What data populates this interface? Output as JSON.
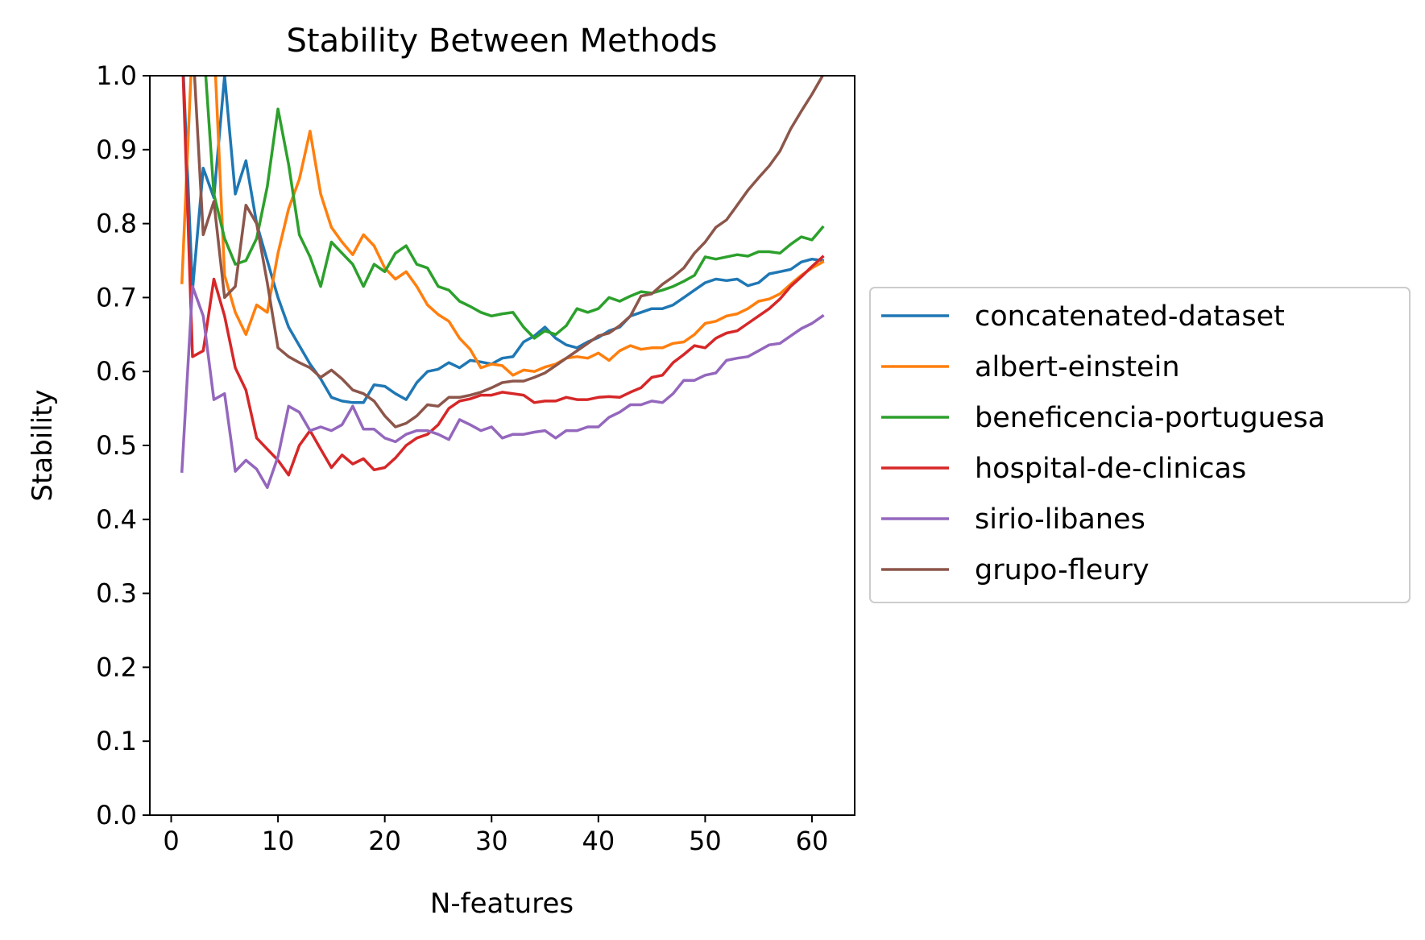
{
  "chart_data": {
    "type": "line",
    "title": "Stability Between Methods",
    "xlabel": "N-features",
    "ylabel": "Stability",
    "xlim": [
      -2,
      64
    ],
    "ylim": [
      0.0,
      1.0
    ],
    "xticks": [
      0,
      10,
      20,
      30,
      40,
      50,
      60
    ],
    "yticks": [
      0.0,
      0.1,
      0.2,
      0.3,
      0.4,
      0.5,
      0.6,
      0.7,
      0.8,
      0.9,
      1.0
    ],
    "xtick_labels": [
      "0",
      "10",
      "20",
      "30",
      "40",
      "50",
      "60"
    ],
    "ytick_labels": [
      "0.0",
      "0.1",
      "0.2",
      "0.3",
      "0.4",
      "0.5",
      "0.6",
      "0.7",
      "0.8",
      "0.9",
      "1.0"
    ],
    "grid": false,
    "legend_position": "center-right outside",
    "x": [
      1,
      2,
      3,
      4,
      5,
      6,
      7,
      8,
      9,
      10,
      11,
      12,
      13,
      14,
      15,
      16,
      17,
      18,
      19,
      20,
      21,
      22,
      23,
      24,
      25,
      26,
      27,
      28,
      29,
      30,
      31,
      32,
      33,
      34,
      35,
      36,
      37,
      38,
      39,
      40,
      41,
      42,
      43,
      44,
      45,
      46,
      47,
      48,
      49,
      50,
      51,
      52,
      53,
      54,
      55,
      56,
      57,
      58,
      59,
      60,
      61
    ],
    "series": [
      {
        "name": "concatenated-dataset",
        "color": "#1f77b4",
        "values": [
          1.05,
          0.71,
          0.875,
          0.835,
          1.0,
          0.84,
          0.885,
          0.8,
          0.75,
          0.7,
          0.66,
          0.635,
          0.61,
          0.59,
          0.565,
          0.56,
          0.558,
          0.558,
          0.582,
          0.58,
          0.57,
          0.562,
          0.585,
          0.6,
          0.603,
          0.612,
          0.605,
          0.615,
          0.613,
          0.61,
          0.618,
          0.62,
          0.64,
          0.648,
          0.66,
          0.645,
          0.636,
          0.632,
          0.64,
          0.646,
          0.655,
          0.66,
          0.675,
          0.68,
          0.685,
          0.685,
          0.69,
          0.7,
          0.71,
          0.72,
          0.725,
          0.723,
          0.725,
          0.716,
          0.72,
          0.732,
          0.735,
          0.738,
          0.748,
          0.752,
          0.75
        ]
      },
      {
        "name": "albert-einstein",
        "color": "#ff7f0e",
        "values": [
          0.72,
          1.05,
          1.05,
          1.05,
          0.73,
          0.68,
          0.65,
          0.69,
          0.68,
          0.76,
          0.82,
          0.86,
          0.925,
          0.84,
          0.795,
          0.775,
          0.758,
          0.785,
          0.77,
          0.74,
          0.725,
          0.735,
          0.715,
          0.69,
          0.677,
          0.668,
          0.645,
          0.63,
          0.605,
          0.61,
          0.608,
          0.595,
          0.602,
          0.6,
          0.606,
          0.61,
          0.618,
          0.62,
          0.618,
          0.625,
          0.615,
          0.628,
          0.635,
          0.63,
          0.632,
          0.632,
          0.638,
          0.64,
          0.65,
          0.665,
          0.668,
          0.675,
          0.678,
          0.685,
          0.695,
          0.698,
          0.705,
          0.718,
          0.73,
          0.74,
          0.748
        ]
      },
      {
        "name": "beneficencia-portuguesa",
        "color": "#2ca02c",
        "values": [
          1.05,
          1.05,
          1.05,
          0.84,
          0.78,
          0.745,
          0.75,
          0.78,
          0.85,
          0.955,
          0.88,
          0.785,
          0.755,
          0.715,
          0.775,
          0.76,
          0.745,
          0.715,
          0.745,
          0.735,
          0.76,
          0.77,
          0.745,
          0.74,
          0.715,
          0.71,
          0.695,
          0.688,
          0.68,
          0.675,
          0.678,
          0.68,
          0.66,
          0.645,
          0.655,
          0.65,
          0.662,
          0.685,
          0.68,
          0.685,
          0.7,
          0.695,
          0.702,
          0.708,
          0.706,
          0.71,
          0.715,
          0.722,
          0.73,
          0.755,
          0.752,
          0.755,
          0.758,
          0.756,
          0.762,
          0.762,
          0.76,
          0.772,
          0.782,
          0.778,
          0.795
        ]
      },
      {
        "name": "hospital-de-clinicas",
        "color": "#d62728",
        "values": [
          1.05,
          0.62,
          0.628,
          0.725,
          0.675,
          0.605,
          0.575,
          0.51,
          0.495,
          0.48,
          0.46,
          0.5,
          0.52,
          0.495,
          0.47,
          0.487,
          0.475,
          0.482,
          0.467,
          0.47,
          0.483,
          0.5,
          0.51,
          0.515,
          0.528,
          0.55,
          0.56,
          0.563,
          0.568,
          0.568,
          0.572,
          0.57,
          0.568,
          0.558,
          0.56,
          0.56,
          0.565,
          0.562,
          0.562,
          0.565,
          0.566,
          0.565,
          0.572,
          0.578,
          0.592,
          0.595,
          0.612,
          0.623,
          0.635,
          0.632,
          0.645,
          0.652,
          0.655,
          0.665,
          0.675,
          0.685,
          0.698,
          0.715,
          0.728,
          0.742,
          0.755
        ]
      },
      {
        "name": "sirio-libanes",
        "color": "#9467bd",
        "values": [
          0.465,
          0.715,
          0.675,
          0.562,
          0.57,
          0.465,
          0.48,
          0.468,
          0.443,
          0.485,
          0.553,
          0.545,
          0.52,
          0.525,
          0.52,
          0.528,
          0.553,
          0.522,
          0.522,
          0.51,
          0.505,
          0.515,
          0.52,
          0.52,
          0.515,
          0.508,
          0.535,
          0.528,
          0.52,
          0.525,
          0.51,
          0.515,
          0.515,
          0.518,
          0.52,
          0.51,
          0.52,
          0.52,
          0.525,
          0.525,
          0.538,
          0.545,
          0.555,
          0.555,
          0.56,
          0.558,
          0.57,
          0.588,
          0.588,
          0.595,
          0.598,
          0.615,
          0.618,
          0.62,
          0.628,
          0.636,
          0.638,
          0.648,
          0.658,
          0.665,
          0.675
        ]
      },
      {
        "name": "grupo-fleury",
        "color": "#8c564b",
        "values": [
          1.05,
          1.05,
          0.785,
          0.83,
          0.7,
          0.715,
          0.825,
          0.8,
          0.72,
          0.632,
          0.62,
          0.612,
          0.605,
          0.592,
          0.602,
          0.59,
          0.575,
          0.57,
          0.56,
          0.54,
          0.525,
          0.53,
          0.54,
          0.555,
          0.553,
          0.565,
          0.565,
          0.568,
          0.572,
          0.578,
          0.585,
          0.587,
          0.587,
          0.592,
          0.598,
          0.608,
          0.618,
          0.628,
          0.638,
          0.648,
          0.652,
          0.662,
          0.675,
          0.702,
          0.705,
          0.718,
          0.728,
          0.74,
          0.76,
          0.775,
          0.795,
          0.805,
          0.825,
          0.845,
          0.862,
          0.878,
          0.898,
          0.928,
          0.952,
          0.975,
          1.0
        ]
      }
    ]
  }
}
